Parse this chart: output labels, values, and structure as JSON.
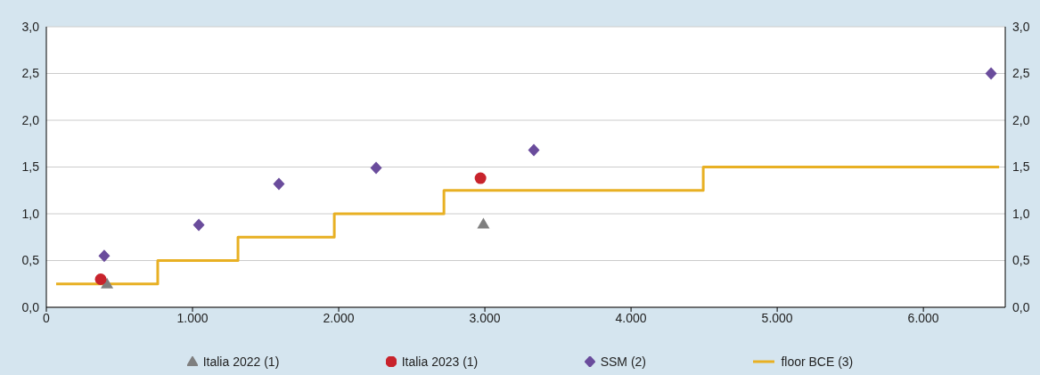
{
  "chart_data": {
    "type": "scatter",
    "xlim": [
      0,
      6560
    ],
    "xticks": [
      0,
      {
        "value": 1000,
        "label": "1.000"
      },
      {
        "value": 2000,
        "label": "2.000"
      },
      {
        "value": 3000,
        "label": "3.000"
      },
      {
        "value": 4000,
        "label": "4.000"
      },
      {
        "value": 5000,
        "label": "5.000"
      },
      {
        "value": 6000,
        "label": "6.000"
      }
    ],
    "ylim": [
      0,
      3
    ],
    "yticks": [
      {
        "value": 0,
        "label": "0,0"
      },
      {
        "value": 0.5,
        "label": "0,5"
      },
      {
        "value": 1,
        "label": "1,0"
      },
      {
        "value": 1.5,
        "label": "1,5"
      },
      {
        "value": 2,
        "label": "2,0"
      },
      {
        "value": 2.5,
        "label": "2,5"
      },
      {
        "value": 3,
        "label": "3,0"
      }
    ],
    "y2lim": [
      0,
      3
    ],
    "y2ticks": [
      {
        "value": 0,
        "label": "0,0"
      },
      {
        "value": 0.5,
        "label": "0,5"
      },
      {
        "value": 1,
        "label": "1,0"
      },
      {
        "value": 1.5,
        "label": "1,5"
      },
      {
        "value": 2,
        "label": "2,0"
      },
      {
        "value": 2.5,
        "label": "2,5"
      },
      {
        "value": 3,
        "label": "3,0"
      }
    ],
    "grid": "y",
    "legend": "bottom",
    "series": [
      {
        "name": "Italia 2022 (1)",
        "marker": "triangle",
        "color": "#7f7f7f",
        "x": [
          415,
          2990
        ],
        "values": [
          0.25,
          0.89
        ]
      },
      {
        "name": "Italia 2023 (1)",
        "marker": "circle",
        "color": "#c8232c",
        "x": [
          372,
          2970
        ],
        "values": [
          0.3,
          1.38
        ]
      },
      {
        "name": "SSM (2)",
        "marker": "diamond",
        "color": "#6a4c9c",
        "x": [
          396,
          1043,
          1591,
          2256,
          3335,
          6463
        ],
        "values": [
          0.55,
          0.88,
          1.32,
          1.49,
          1.68,
          2.5
        ]
      },
      {
        "name": "floor BCE (3)",
        "type": "step",
        "color": "#e8b023",
        "x": [
          67,
          762,
          1311,
          1970,
          2720,
          4494,
          6518
        ],
        "values": [
          0.25,
          0.5,
          0.75,
          1.0,
          1.25,
          1.5,
          1.5
        ]
      }
    ]
  }
}
